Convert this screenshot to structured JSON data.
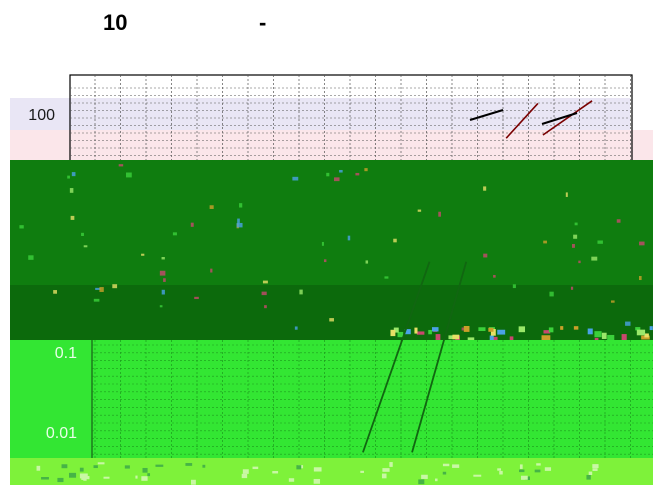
{
  "chart_data": {
    "type": "line",
    "title_parts": [
      "10",
      "-"
    ],
    "y_scale": "log",
    "ylim": [
      0.005,
      300
    ],
    "y_tick_labels": [
      "100",
      "0.1",
      "0.01"
    ],
    "y_tick_values": [
      100,
      0.1,
      0.01
    ],
    "x_scale": "log",
    "xlim": [
      1,
      1000
    ],
    "grid": true,
    "legend": "none",
    "series": [
      {
        "points_upper": [
          [
            200,
            55
          ],
          [
            300,
            140
          ]
        ],
        "points_lower": [
          [
            32,
            0.012
          ],
          [
            75,
            2.0
          ]
        ]
      },
      {
        "points_upper": [
          [
            320,
            60
          ],
          [
            600,
            150
          ]
        ],
        "points_lower": [
          [
            60,
            0.012
          ],
          [
            120,
            2.0
          ]
        ]
      }
    ]
  },
  "colors": {
    "frame": "#000000",
    "grid": "#555555",
    "line": "#7a0000",
    "band_lavender": "#e9e6f5",
    "band_pink": "#fbe6ea",
    "band_green_dark": "#0f7d0f",
    "band_green_deep": "#0c6a0c",
    "band_green_bright": "#33e633",
    "band_green_lime": "#7ef23a"
  }
}
